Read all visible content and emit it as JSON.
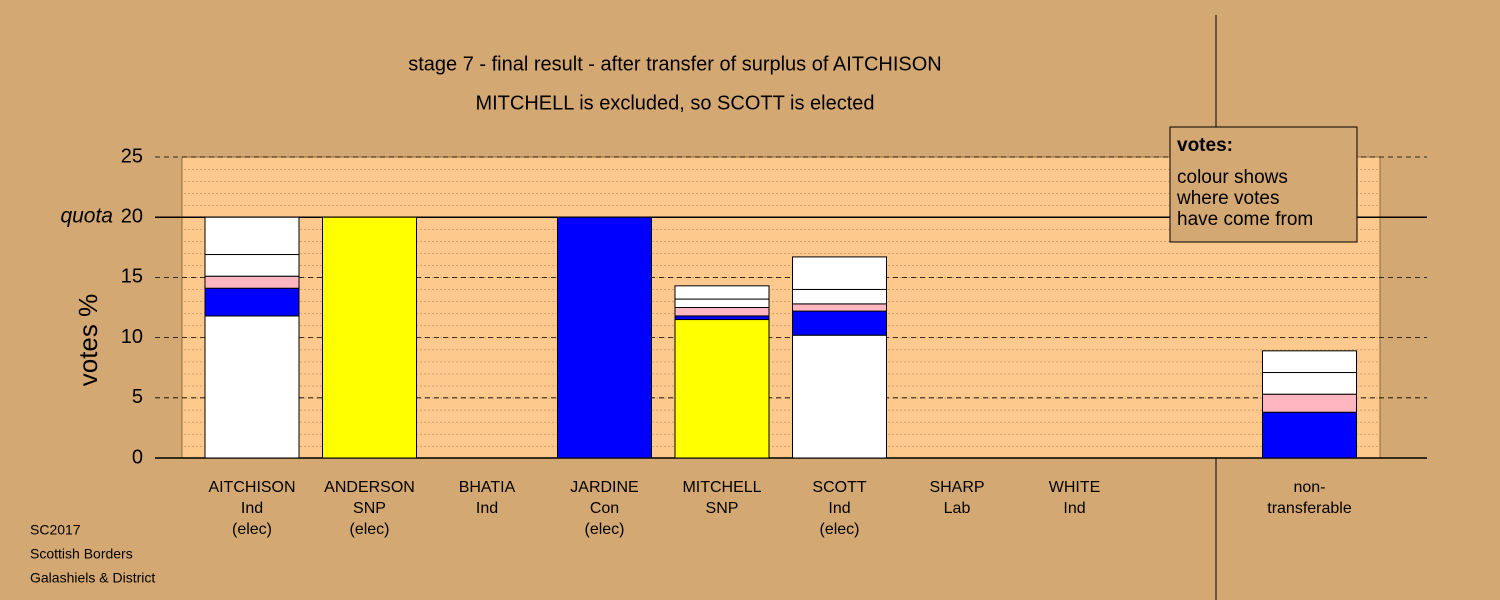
{
  "chart_data": {
    "type": "stacked-bar",
    "title": "stage 7 - final result - after transfer of surplus of AITCHISON",
    "subtitle": "MITCHELL is excluded, so SCOTT is elected",
    "y_label": "votes %",
    "quota_label": "quota",
    "quota": 20,
    "categories": [
      [
        "AITCHISON",
        "Ind",
        "(elec)"
      ],
      [
        "ANDERSON",
        "SNP",
        "(elec)"
      ],
      [
        "BHATIA",
        "Ind"
      ],
      [
        "JARDINE",
        "Con",
        "(elec)"
      ],
      [
        "MITCHELL",
        "SNP"
      ],
      [
        "SCOTT",
        "Ind",
        "(elec)"
      ],
      [
        "SHARP",
        "Lab"
      ],
      [
        "WHITE",
        "Ind"
      ],
      null,
      [
        "non-",
        "transferable"
      ]
    ],
    "series": [
      {
        "values": [
          11.8,
          20,
          0,
          20,
          11.5,
          10.2,
          0,
          0,
          null,
          3.8
        ],
        "colors": [
          "#ffffff",
          "#ffff00",
          "#ffffff",
          "#0000ff",
          "#ffff00",
          "#ffffff",
          "#ff0000",
          "#ffffff",
          null,
          "#0000ff"
        ]
      },
      {
        "values": [
          2.3,
          0,
          0,
          0,
          0.3,
          2.0,
          0,
          0,
          null,
          1.5
        ],
        "colors": [
          "#0000ff",
          "#0000ff",
          "#0000ff",
          "#0000ff",
          "#0000ff",
          "#0000ff",
          "#0000ff",
          "#0000ff",
          null,
          "#ffb6c1"
        ]
      },
      {
        "values": [
          1.0,
          0,
          0,
          0,
          0.7,
          0.6,
          0,
          0,
          null,
          1.8
        ],
        "colors": [
          "#ffb6c1",
          "#ffb6c1",
          "#ffb6c1",
          "#ffb6c1",
          "#ffb6c1",
          "#ffb6c1",
          "#ffb6c1",
          "#ffb6c1",
          null,
          "#ffffff"
        ]
      },
      {
        "values": [
          1.8,
          0,
          0,
          0,
          0.7,
          1.2,
          0,
          0,
          null,
          1.8
        ],
        "colors": [
          "#ffffff",
          "#ffffff",
          "#ffffff",
          "#ffffff",
          "#ffffff",
          "#ffffff",
          "#ffffff",
          "#ffffff",
          null,
          "#ffffff"
        ]
      },
      {
        "values": [
          3.1,
          0,
          0,
          0,
          1.1,
          2.7,
          0,
          0,
          null,
          0
        ],
        "colors": [
          "#ffffff",
          "#ffffff",
          "#ffffff",
          "#ffffff",
          "#ffffff",
          "#ffffff",
          "#ffffff",
          "#ffffff",
          null,
          "#ffffff"
        ]
      }
    ],
    "ylim": [
      0,
      25
    ],
    "yticks": [
      0,
      5,
      10,
      15,
      20,
      25
    ],
    "legend": {
      "title": "votes:",
      "lines": [
        "colour shows",
        "where votes",
        "have come from"
      ]
    },
    "footer": [
      "SC2017",
      "Scottish Borders",
      "Galashiels & District"
    ]
  }
}
